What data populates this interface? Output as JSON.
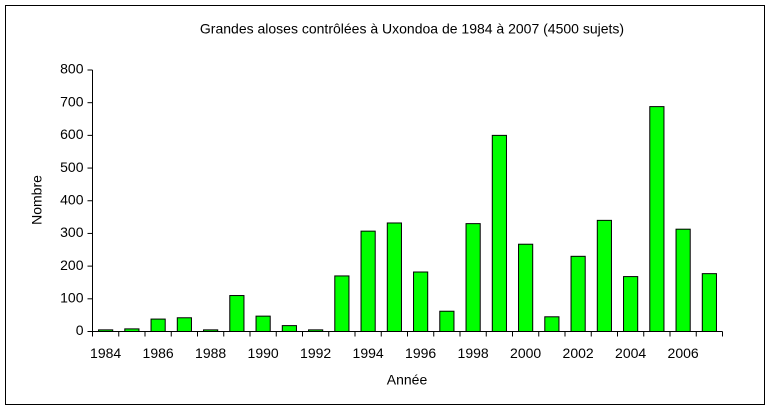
{
  "chart_data": {
    "type": "bar",
    "title": "Grandes aloses contrôlées à Uxondoa de 1984 à 2007 (4500 sujets)",
    "x_label": "Année",
    "y_label": "Nombre",
    "categories": [
      "1984",
      null,
      "1986",
      null,
      "1988",
      null,
      "1990",
      null,
      "1992",
      null,
      "1994",
      null,
      "1996",
      null,
      "1998",
      null,
      "2000",
      null,
      "2002",
      null,
      "2004",
      null,
      "2006",
      null
    ],
    "values": [
      5,
      8,
      38,
      42,
      5,
      110,
      47,
      18,
      5,
      170,
      307,
      332,
      182,
      62,
      330,
      600,
      267,
      45,
      230,
      340,
      168,
      688,
      313,
      177
    ],
    "color": "#00ff00",
    "ylim": [
      0,
      800
    ],
    "yticks": [
      0,
      100,
      200,
      300,
      400,
      500,
      600,
      700,
      800
    ],
    "grid": false
  }
}
